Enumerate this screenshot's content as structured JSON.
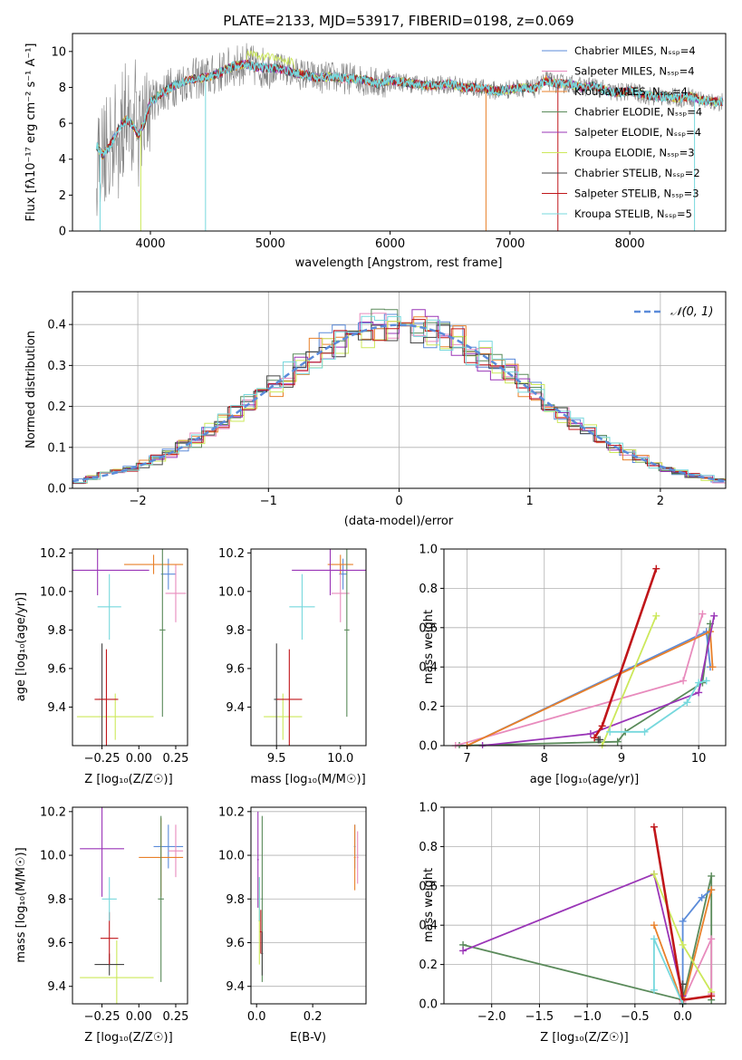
{
  "colors": {
    "series": [
      "#5b8bd9",
      "#e88bbd",
      "#e8802a",
      "#5a8a5a",
      "#9a35b7",
      "#cce85a",
      "#444444",
      "#c0161a",
      "#77d8dd"
    ],
    "top_extra": "#808080",
    "normal_curve": "#5b8bd9"
  },
  "chart_data": [
    {
      "id": "spectrum",
      "type": "line",
      "title": "PLATE=2133, MJD=53917, FIBERID=0198, z=0.069",
      "xlabel": "wavelength [Angstrom, rest frame]",
      "ylabel": "Flux [fλ10⁻¹⁷ erg cm⁻² s⁻¹ A⁻¹]",
      "xlim": [
        3350,
        8800
      ],
      "ylim": [
        0,
        11
      ],
      "xticks": [
        "4000",
        "5000",
        "6000",
        "7000",
        "8000"
      ],
      "yticks": [
        "0",
        "2",
        "4",
        "6",
        "8",
        "10"
      ],
      "legend_position": "right",
      "legend": [
        "Chabrier MILES, Nₛₛₚ=4",
        "Salpeter MILES, Nₛₛₚ=4",
        "Kroupa MILES, Nₛₛₚ=4",
        "Chabrier ELODIE, Nₛₛₚ=4",
        "Salpeter ELODIE, Nₛₛₚ=4",
        "Kroupa ELODIE, Nₛₛₚ=3",
        "Chabrier STELIB, Nₛₛₚ=2",
        "Salpeter STELIB, Nₛₛₚ=3",
        "Kroupa STELIB, Nₛₛₚ=5"
      ],
      "model_x": [
        3550,
        3600,
        3650,
        3700,
        3750,
        3800,
        3850,
        3900,
        3950,
        4000,
        4100,
        4200,
        4300,
        4400,
        4500,
        4600,
        4700,
        4800,
        4900,
        5000,
        5100,
        5200,
        5300,
        5400,
        5500,
        5600,
        5700,
        5800,
        5900,
        6000,
        6100,
        6200,
        6300,
        6400,
        6500,
        6600,
        6700,
        6800,
        6900,
        7000,
        7100,
        7200,
        7300,
        7400,
        7500,
        7600,
        7700,
        7800,
        7900,
        8000,
        8100,
        8200,
        8300,
        8400,
        8500,
        8600,
        8700,
        8790
      ],
      "model_y": [
        4.8,
        4.2,
        4.6,
        5.2,
        5.9,
        6.2,
        5.9,
        5.3,
        6.0,
        7.2,
        7.7,
        8.1,
        8.4,
        8.5,
        8.6,
        8.9,
        9.2,
        9.3,
        9.1,
        9.1,
        9.0,
        8.8,
        8.7,
        8.5,
        8.6,
        8.5,
        8.5,
        8.4,
        8.2,
        8.4,
        8.3,
        8.2,
        8.1,
        8.1,
        8.2,
        8.0,
        8.0,
        7.9,
        7.8,
        7.9,
        8.0,
        7.9,
        8.4,
        8.2,
        8.2,
        8.0,
        8.1,
        7.8,
        7.7,
        7.8,
        7.6,
        7.5,
        7.5,
        7.4,
        7.5,
        7.3,
        7.2,
        7.2
      ]
    },
    {
      "id": "residuals",
      "type": "histogram",
      "xlabel": "(data-model)/error",
      "ylabel": "Normed distribution",
      "xlim": [
        -2.5,
        2.5
      ],
      "ylim": [
        0,
        0.48
      ],
      "xticks": [
        "−2",
        "−1",
        "0",
        "1",
        "2"
      ],
      "yticks": [
        "0.0",
        "0.1",
        "0.2",
        "0.3",
        "0.4"
      ],
      "grid": true,
      "legend_position": "top-right",
      "legend": [
        "𝒩(0, 1)"
      ],
      "bin_width": 0.1
    },
    {
      "id": "age-vs-Z",
      "type": "scatter",
      "xlabel": "Z [log₁₀(Z/Z☉)]",
      "ylabel": "age  [log₁₀(age/yr)]",
      "xlim": [
        -0.45,
        0.33
      ],
      "ylim": [
        9.2,
        10.22
      ],
      "xticks": [
        "−0.25",
        "0.00",
        "0.25"
      ],
      "yticks": [
        "9.4",
        "9.6",
        "9.8",
        "10.0",
        "10.2"
      ],
      "points": [
        {
          "x": 0.2,
          "y": 10.09,
          "xerr": 0.05,
          "yerr": 0.08
        },
        {
          "x": 0.25,
          "y": 9.99,
          "xerr": 0.07,
          "yerr": 0.15
        },
        {
          "x": 0.1,
          "y": 10.14,
          "xerr": 0.2,
          "yerr": 0.05
        },
        {
          "x": 0.16,
          "y": 9.8,
          "xerr": 0.02,
          "yerr": 0.45
        },
        {
          "x": -0.28,
          "y": 10.11,
          "xerr": 0.35,
          "yerr": 0.13
        },
        {
          "x": -0.16,
          "y": 9.35,
          "xerr": 0.26,
          "yerr": 0.12
        },
        {
          "x": -0.25,
          "y": 9.44,
          "xerr": 0.02,
          "yerr": 0.29
        },
        {
          "x": -0.22,
          "y": 9.44,
          "xerr": 0.08,
          "yerr": 0.26
        },
        {
          "x": -0.2,
          "y": 9.92,
          "xerr": 0.08,
          "yerr": 0.17
        }
      ]
    },
    {
      "id": "age-vs-mass",
      "type": "scatter",
      "xlabel": "mass [log₁₀(M/M☉)]",
      "ylabel": "",
      "xlim": [
        9.3,
        10.2
      ],
      "ylim": [
        9.2,
        10.22
      ],
      "xticks": [
        "9.5",
        "10.0"
      ],
      "yticks": [
        "9.4",
        "9.6",
        "9.8",
        "10.0",
        "10.2"
      ],
      "points": [
        {
          "x": 10.02,
          "y": 10.09,
          "xerr": 0.03,
          "yerr": 0.08
        },
        {
          "x": 10.0,
          "y": 9.99,
          "xerr": 0.07,
          "yerr": 0.15
        },
        {
          "x": 10.0,
          "y": 10.14,
          "xerr": 0.1,
          "yerr": 0.05
        },
        {
          "x": 10.05,
          "y": 9.8,
          "xerr": 0.02,
          "yerr": 0.45
        },
        {
          "x": 9.92,
          "y": 10.11,
          "xerr": 0.3,
          "yerr": 0.13
        },
        {
          "x": 9.55,
          "y": 9.35,
          "xerr": 0.15,
          "yerr": 0.12
        },
        {
          "x": 9.5,
          "y": 9.44,
          "xerr": 0.02,
          "yerr": 0.29
        },
        {
          "x": 9.6,
          "y": 9.44,
          "xerr": 0.1,
          "yerr": 0.26
        },
        {
          "x": 9.7,
          "y": 9.92,
          "xerr": 0.1,
          "yerr": 0.17
        }
      ]
    },
    {
      "id": "weights-vs-age",
      "type": "line",
      "xlabel": "age  [log₁₀(age/yr)]",
      "ylabel": "mass weight",
      "xlim": [
        6.7,
        10.35
      ],
      "ylim": [
        0,
        1
      ],
      "xticks": [
        "7",
        "8",
        "9",
        "10"
      ],
      "yticks": [
        "0.0",
        "0.2",
        "0.4",
        "0.6",
        "0.8",
        "1.0"
      ],
      "grid": true,
      "series": [
        {
          "x": [
            7.0,
            10.1,
            10.15
          ],
          "y": [
            0.0,
            0.58,
            0.4
          ]
        },
        {
          "x": [
            6.85,
            9.8,
            10.05
          ],
          "y": [
            0.0,
            0.33,
            0.67
          ]
        },
        {
          "x": [
            7.0,
            10.15,
            10.18
          ],
          "y": [
            0.0,
            0.58,
            0.4
          ]
        },
        {
          "x": [
            6.9,
            8.95,
            9.05,
            10.05,
            10.15
          ],
          "y": [
            0.0,
            0.02,
            0.07,
            0.32,
            0.62
          ]
        },
        {
          "x": [
            7.2,
            8.6,
            10.0,
            10.2
          ],
          "y": [
            0.0,
            0.06,
            0.27,
            0.66
          ]
        },
        {
          "x": [
            8.75,
            9.45
          ],
          "y": [
            0.0,
            0.66
          ]
        },
        {
          "x": [
            8.7,
            8.72
          ],
          "y": [
            0.03,
            0.03
          ]
        },
        {
          "x": [
            8.65,
            8.75,
            9.45
          ],
          "y": [
            0.04,
            0.1,
            0.9
          ]
        },
        {
          "x": [
            8.85,
            9.3,
            9.85,
            10.0,
            10.1
          ],
          "y": [
            0.07,
            0.07,
            0.22,
            0.32,
            0.33
          ]
        }
      ]
    },
    {
      "id": "mass-vs-Z",
      "type": "scatter",
      "xlabel": "Z [log₁₀(Z/Z☉)]",
      "ylabel": "mass [log₁₀(M/M☉)]",
      "xlim": [
        -0.45,
        0.33
      ],
      "ylim": [
        9.32,
        10.22
      ],
      "xticks": [
        "−0.25",
        "0.00",
        "0.25"
      ],
      "yticks": [
        "9.4",
        "9.6",
        "9.8",
        "10.0",
        "10.2"
      ],
      "points": [
        {
          "x": 0.2,
          "y": 10.04,
          "xerr": 0.1,
          "yerr": 0.1
        },
        {
          "x": 0.25,
          "y": 10.02,
          "xerr": 0.05,
          "yerr": 0.12
        },
        {
          "x": 0.15,
          "y": 9.99,
          "xerr": 0.15,
          "yerr": 0.18
        },
        {
          "x": 0.15,
          "y": 9.8,
          "xerr": 0.02,
          "yerr": 0.38
        },
        {
          "x": -0.25,
          "y": 10.03,
          "xerr": 0.15,
          "yerr": 0.22
        },
        {
          "x": -0.15,
          "y": 9.44,
          "xerr": 0.25,
          "yerr": 0.17
        },
        {
          "x": -0.2,
          "y": 9.5,
          "xerr": 0.1,
          "yerr": 0.05
        },
        {
          "x": -0.2,
          "y": 9.62,
          "xerr": 0.06,
          "yerr": 0.12
        },
        {
          "x": -0.2,
          "y": 9.8,
          "xerr": 0.05,
          "yerr": 0.1
        }
      ]
    },
    {
      "id": "mass-vs-EBV",
      "type": "scatter",
      "xlabel": "E(B-V)",
      "ylabel": "",
      "xlim": [
        -0.02,
        0.39
      ],
      "ylim": [
        9.32,
        10.22
      ],
      "xticks": [
        "0.0",
        "0.2"
      ],
      "yticks": [
        "9.4",
        "9.6",
        "9.8",
        "10.0",
        "10.2"
      ],
      "points": [
        {
          "x": 0.35,
          "y": 10.04,
          "xerr": 0.003,
          "yerr": 0.1
        },
        {
          "x": 0.36,
          "y": 9.99,
          "xerr": 0.003,
          "yerr": 0.12
        },
        {
          "x": 0.35,
          "y": 9.99,
          "xerr": 0.003,
          "yerr": 0.15
        },
        {
          "x": 0.02,
          "y": 9.8,
          "xerr": 0.003,
          "yerr": 0.38
        },
        {
          "x": 0.005,
          "y": 9.98,
          "xerr": 0.003,
          "yerr": 0.22
        },
        {
          "x": 0.01,
          "y": 9.7,
          "xerr": 0.003,
          "yerr": 0.2
        },
        {
          "x": 0.02,
          "y": 9.55,
          "xerr": 0.003,
          "yerr": 0.1
        },
        {
          "x": 0.015,
          "y": 9.65,
          "xerr": 0.003,
          "yerr": 0.1
        },
        {
          "x": 0.01,
          "y": 9.8,
          "xerr": 0.003,
          "yerr": 0.1
        }
      ]
    },
    {
      "id": "weights-vs-Z",
      "type": "line",
      "xlabel": "Z [log₁₀(Z/Z☉)]",
      "ylabel": "mass weight",
      "xlim": [
        -2.5,
        0.45
      ],
      "ylim": [
        0,
        1
      ],
      "xticks": [
        "−2.0",
        "−1.5",
        "−1.0",
        "−0.5",
        "0.0"
      ],
      "yticks": [
        "0.0",
        "0.2",
        "0.4",
        "0.6",
        "0.8",
        "1.0"
      ],
      "grid": true,
      "series": [
        {
          "x": [
            0.0,
            0.0,
            0.2,
            0.3
          ],
          "y": [
            0.1,
            0.42,
            0.54,
            0.58
          ]
        },
        {
          "x": [
            0.0,
            0.3,
            0.3
          ],
          "y": [
            0.01,
            0.33,
            0.05
          ]
        },
        {
          "x": [
            -0.3,
            0.0,
            0.3
          ],
          "y": [
            0.4,
            0.0,
            0.58
          ]
        },
        {
          "x": [
            -2.3,
            0.0,
            0.3,
            0.3
          ],
          "y": [
            0.3,
            0.02,
            0.65,
            0.02
          ]
        },
        {
          "x": [
            -2.3,
            -0.3,
            0.0
          ],
          "y": [
            0.27,
            0.66,
            0.04
          ]
        },
        {
          "x": [
            -0.3,
            0.0,
            0.3
          ],
          "y": [
            0.66,
            0.3,
            0.06
          ]
        },
        {
          "x": [
            0.0,
            0.0
          ],
          "y": [
            0.1,
            0.0
          ]
        },
        {
          "x": [
            -0.3,
            0.0,
            0.3
          ],
          "y": [
            0.9,
            0.02,
            0.04
          ]
        },
        {
          "x": [
            -0.3,
            -0.3,
            0.0
          ],
          "y": [
            0.07,
            0.33,
            0.0
          ]
        }
      ]
    }
  ]
}
